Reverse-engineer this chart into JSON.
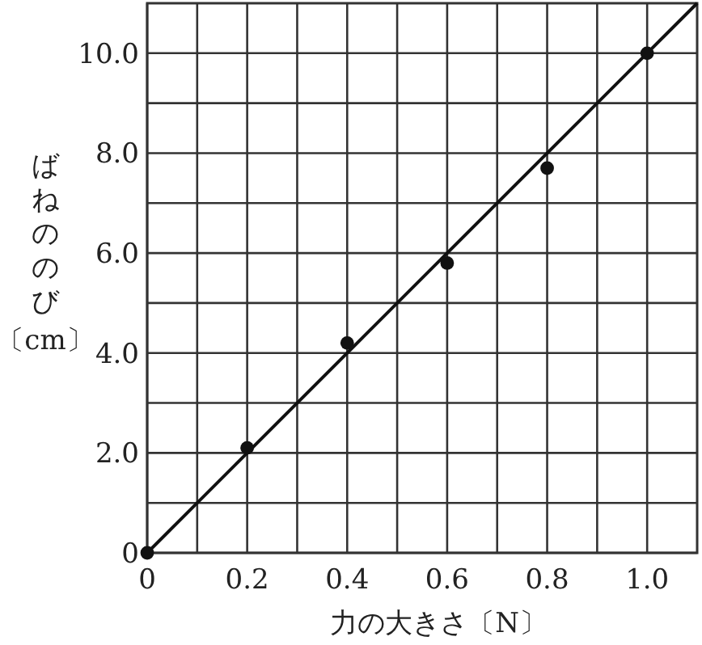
{
  "chart_data": {
    "type": "scatter",
    "xlabel": "力の大きさ〔N〕",
    "ylabel": "ばねののび〔cm〕",
    "xlim": [
      0,
      1.1
    ],
    "ylim": [
      0,
      11
    ],
    "xticks": [
      0,
      {
        "value": 0.1,
        "label": null
      },
      {
        "value": 0.2,
        "label": "0.2"
      },
      {
        "value": 0.3,
        "label": null
      },
      {
        "value": 0.4,
        "label": "0.4"
      },
      {
        "value": 0.5,
        "label": null
      },
      {
        "value": 0.6,
        "label": "0.6"
      },
      {
        "value": 0.7,
        "label": null
      },
      {
        "value": 0.8,
        "label": "0.8"
      },
      {
        "value": 0.9,
        "label": null
      },
      {
        "value": 1.0,
        "label": "1.0"
      }
    ],
    "yticks": [
      0,
      {
        "value": 1,
        "label": null
      },
      {
        "value": 2,
        "label": "2.0"
      },
      {
        "value": 3,
        "label": null
      },
      {
        "value": 4,
        "label": "4.0"
      },
      {
        "value": 5,
        "label": null
      },
      {
        "value": 6,
        "label": "6.0"
      },
      {
        "value": 7,
        "label": null
      },
      {
        "value": 8,
        "label": "8.0"
      },
      {
        "value": 9,
        "label": null
      },
      {
        "value": 10,
        "label": "10.0"
      }
    ],
    "grid": true,
    "series": [
      {
        "marker": "circle",
        "color": "#111111",
        "x": [
          0,
          0.2,
          0.4,
          0.6,
          0.8,
          1.0
        ],
        "values": [
          0,
          2.1,
          4.2,
          5.8,
          7.7,
          10.0
        ]
      },
      {
        "type": "line",
        "color": "#111111",
        "x": [
          0,
          1.1
        ],
        "values": [
          0,
          11
        ]
      }
    ]
  }
}
